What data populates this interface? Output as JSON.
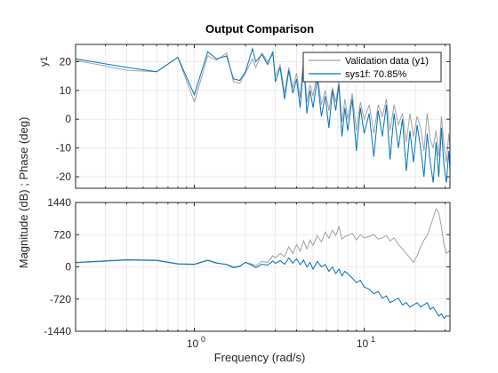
{
  "chart_data": {
    "type": "line",
    "title": "Output Comparison",
    "xlabel": "Frequency  (rad/s)",
    "ylabel": "Magnitude (dB) ; Phase (deg)",
    "x_scale": "log",
    "xlim": [
      0.2,
      32
    ],
    "x_ticks": [
      {
        "value": 1,
        "base": "10",
        "exp": "0"
      },
      {
        "value": 10,
        "base": "10",
        "exp": "1"
      }
    ],
    "grid": true,
    "colors": {
      "validation": "#a0a0a0",
      "model": "#0072bd",
      "axis": "#262626"
    },
    "legend": {
      "placement": "top-right",
      "entries": [
        {
          "label": "Validation data (y1)",
          "color": "#a0a0a0"
        },
        {
          "label": "sys1f: 70.85%",
          "color": "#0072bd"
        }
      ]
    },
    "panels": [
      {
        "name": "magnitude",
        "ylabel": "y1",
        "ylim": [
          -24,
          26
        ],
        "y_ticks": [
          20,
          10,
          0,
          -10,
          -20
        ],
        "series": [
          {
            "name": "Validation data (y1)",
            "color": "#a0a0a0",
            "x": [
              0.2,
              0.4,
              0.6,
              0.8,
              1.0,
              1.2,
              1.35,
              1.55,
              1.7,
              1.85,
              2.0,
              2.2,
              2.3,
              2.5,
              2.7,
              2.9,
              3.0,
              3.2,
              3.4,
              3.6,
              3.8,
              4.0,
              4.2,
              4.4,
              4.6,
              4.8,
              5.0,
              5.3,
              5.6,
              5.9,
              6.2,
              6.5,
              6.8,
              7.1,
              7.4,
              7.7,
              8.0,
              8.5,
              9.0,
              9.5,
              10.0,
              10.7,
              11.4,
              12.1,
              12.8,
              13.5,
              14.2,
              15.0,
              15.9,
              16.8,
              17.7,
              18.6,
              19.5,
              20.5,
              21.5,
              22.5,
              23.5,
              24.5,
              25.5,
              26.5,
              27.5,
              28.5,
              29.5,
              30.5,
              31.5,
              32.0
            ],
            "y": [
              20.5,
              17.0,
              16.5,
              21.5,
              6.0,
              22.0,
              20.5,
              23.0,
              13.0,
              12.5,
              16.0,
              21.0,
              18.0,
              23.0,
              20.0,
              22.5,
              15.0,
              19.0,
              9.0,
              18.0,
              11.0,
              16.0,
              7.5,
              21.0,
              6.0,
              12.0,
              8.0,
              16.0,
              5.0,
              10.0,
              3.0,
              11.0,
              6.0,
              13.0,
              -1.0,
              7.0,
              0.0,
              9.0,
              -4.0,
              6.0,
              0.0,
              5.0,
              -5.0,
              5.0,
              1.0,
              7.0,
              -4.0,
              5.0,
              -2.0,
              2.0,
              -8.0,
              2.0,
              -6.0,
              1.0,
              -3.0,
              -11.0,
              2.0,
              -7.0,
              -10.0,
              -4.0,
              -13.0,
              1.0,
              -9.0,
              -15.0,
              -5.0,
              -10.0
            ]
          },
          {
            "name": "sys1f: 70.85%",
            "color": "#0072bd",
            "x": [
              0.2,
              0.4,
              0.6,
              0.8,
              1.0,
              1.2,
              1.35,
              1.55,
              1.7,
              1.85,
              2.0,
              2.2,
              2.3,
              2.5,
              2.7,
              2.9,
              3.0,
              3.2,
              3.4,
              3.6,
              3.8,
              4.0,
              4.2,
              4.4,
              4.6,
              4.8,
              5.0,
              5.3,
              5.6,
              5.9,
              6.2,
              6.5,
              6.8,
              7.1,
              7.4,
              7.7,
              8.0,
              8.5,
              9.0,
              9.5,
              10.0,
              10.7,
              11.4,
              12.1,
              12.8,
              13.5,
              14.2,
              15.0,
              15.9,
              16.8,
              17.7,
              18.6,
              19.5,
              20.5,
              21.5,
              22.5,
              23.5,
              24.5,
              25.5,
              26.5,
              27.5,
              28.5,
              29.5,
              30.5,
              31.5,
              32.0
            ],
            "y": [
              21.0,
              18.0,
              16.5,
              21.5,
              8.5,
              23.5,
              21.0,
              22.0,
              14.0,
              13.5,
              16.5,
              24.5,
              20.0,
              22.5,
              19.0,
              23.5,
              13.0,
              18.0,
              7.0,
              17.0,
              9.0,
              14.0,
              4.0,
              20.0,
              2.0,
              10.0,
              4.0,
              14.0,
              1.0,
              8.0,
              -3.0,
              10.0,
              3.0,
              12.0,
              -6.0,
              4.0,
              -4.0,
              7.0,
              -11.0,
              4.0,
              -5.0,
              2.0,
              -13.0,
              3.0,
              -6.0,
              5.0,
              -14.0,
              2.0,
              -10.0,
              0.0,
              -18.0,
              -4.0,
              -15.0,
              -2.0,
              -10.0,
              -20.0,
              -5.0,
              -15.0,
              -22.0,
              -8.0,
              -20.0,
              -3.0,
              -16.0,
              -22.0,
              -11.0,
              -18.0
            ]
          }
        ]
      },
      {
        "name": "phase",
        "ylabel": "",
        "ylim": [
          -1440,
          1440
        ],
        "y_ticks": [
          1440,
          720,
          0,
          -720,
          -1440
        ],
        "series": [
          {
            "name": "Validation data (y1)",
            "color": "#a0a0a0",
            "x": [
              0.2,
              0.4,
              0.6,
              0.8,
              1.0,
              1.2,
              1.35,
              1.55,
              1.7,
              1.85,
              2.0,
              2.2,
              2.3,
              2.5,
              2.7,
              2.9,
              3.0,
              3.2,
              3.4,
              3.6,
              3.8,
              4.0,
              4.2,
              4.4,
              4.6,
              4.8,
              5.0,
              5.3,
              5.6,
              5.9,
              6.2,
              6.5,
              6.8,
              7.1,
              7.4,
              7.7,
              8.0,
              8.5,
              9.0,
              9.5,
              10.0,
              10.7,
              11.4,
              12.1,
              12.8,
              13.5,
              14.2,
              15.0,
              15.9,
              16.8,
              17.7,
              18.6,
              19.5,
              20.5,
              21.5,
              22.5,
              23.5,
              24.5,
              25.5,
              26.5,
              27.5,
              28.5,
              29.5,
              30.5,
              31.5,
              32.0
            ],
            "y": [
              90,
              150,
              140,
              60,
              50,
              140,
              80,
              60,
              0,
              20,
              100,
              60,
              20,
              120,
              100,
              250,
              200,
              300,
              230,
              450,
              300,
              500,
              350,
              580,
              400,
              600,
              480,
              700,
              560,
              780,
              640,
              820,
              700,
              900,
              620,
              680,
              700,
              750,
              600,
              720,
              650,
              680,
              720,
              620,
              650,
              700,
              580,
              650,
              500,
              400,
              300,
              200,
              100,
              250,
              450,
              600,
              700,
              900,
              1100,
              1300,
              1200,
              900,
              500,
              300,
              350,
              320
            ]
          },
          {
            "name": "sys1f: 70.85%",
            "color": "#0072bd",
            "x": [
              0.2,
              0.4,
              0.6,
              0.8,
              1.0,
              1.2,
              1.35,
              1.55,
              1.7,
              1.85,
              2.0,
              2.2,
              2.3,
              2.5,
              2.7,
              2.9,
              3.0,
              3.2,
              3.4,
              3.6,
              3.8,
              4.0,
              4.2,
              4.4,
              4.6,
              4.8,
              5.0,
              5.3,
              5.6,
              5.9,
              6.2,
              6.5,
              6.8,
              7.1,
              7.4,
              7.7,
              8.0,
              8.5,
              9.0,
              9.5,
              10.0,
              10.7,
              11.4,
              12.1,
              12.8,
              13.5,
              14.2,
              15.0,
              15.9,
              16.8,
              17.7,
              18.6,
              19.5,
              20.5,
              21.5,
              22.5,
              23.5,
              24.5,
              25.5,
              26.5,
              27.5,
              28.5,
              29.5,
              30.5,
              31.5,
              32.0
            ],
            "y": [
              100,
              160,
              150,
              70,
              60,
              150,
              90,
              50,
              -20,
              10,
              100,
              30,
              -20,
              60,
              40,
              130,
              80,
              140,
              60,
              200,
              80,
              180,
              50,
              150,
              0,
              100,
              -50,
              120,
              0,
              50,
              -100,
              0,
              -150,
              -50,
              -200,
              -100,
              -150,
              -250,
              -350,
              -300,
              -450,
              -500,
              -600,
              -550,
              -700,
              -650,
              -800,
              -750,
              -700,
              -850,
              -800,
              -900,
              -850,
              -800,
              -900,
              -850,
              -800,
              -950,
              -900,
              -1000,
              -1100,
              -1050,
              -1150,
              -1100,
              -1100,
              -1100
            ]
          }
        ]
      }
    ]
  }
}
